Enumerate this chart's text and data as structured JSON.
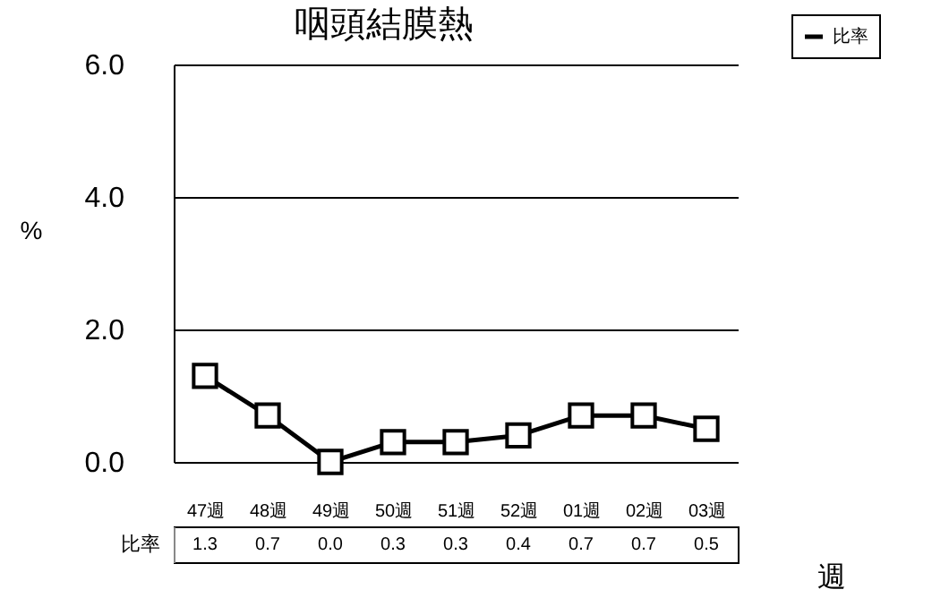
{
  "chart_data": {
    "type": "line",
    "title": "咽頭結膜熱",
    "xlabel": "週",
    "ylabel": "%",
    "categories": [
      "47週",
      "48週",
      "49週",
      "50週",
      "51週",
      "52週",
      "01週",
      "02週",
      "03週"
    ],
    "series": [
      {
        "name": "比率",
        "color": "#000000",
        "values": [
          1.3,
          0.7,
          0.0,
          0.3,
          0.3,
          0.4,
          0.7,
          0.7,
          0.5
        ],
        "value_labels": [
          "1.3",
          "0.7",
          "0.0",
          "0.3",
          "0.3",
          "0.4",
          "0.7",
          "0.7",
          "0.5"
        ]
      }
    ],
    "ylim": [
      0,
      6
    ],
    "yticks": [
      {
        "value": 0,
        "label": "0.0"
      },
      {
        "value": 2,
        "label": "2.0"
      },
      {
        "value": 4,
        "label": "4.0"
      },
      {
        "value": 6,
        "label": "6.0"
      }
    ],
    "grid": "y",
    "legend": "top right",
    "marker": "square"
  }
}
